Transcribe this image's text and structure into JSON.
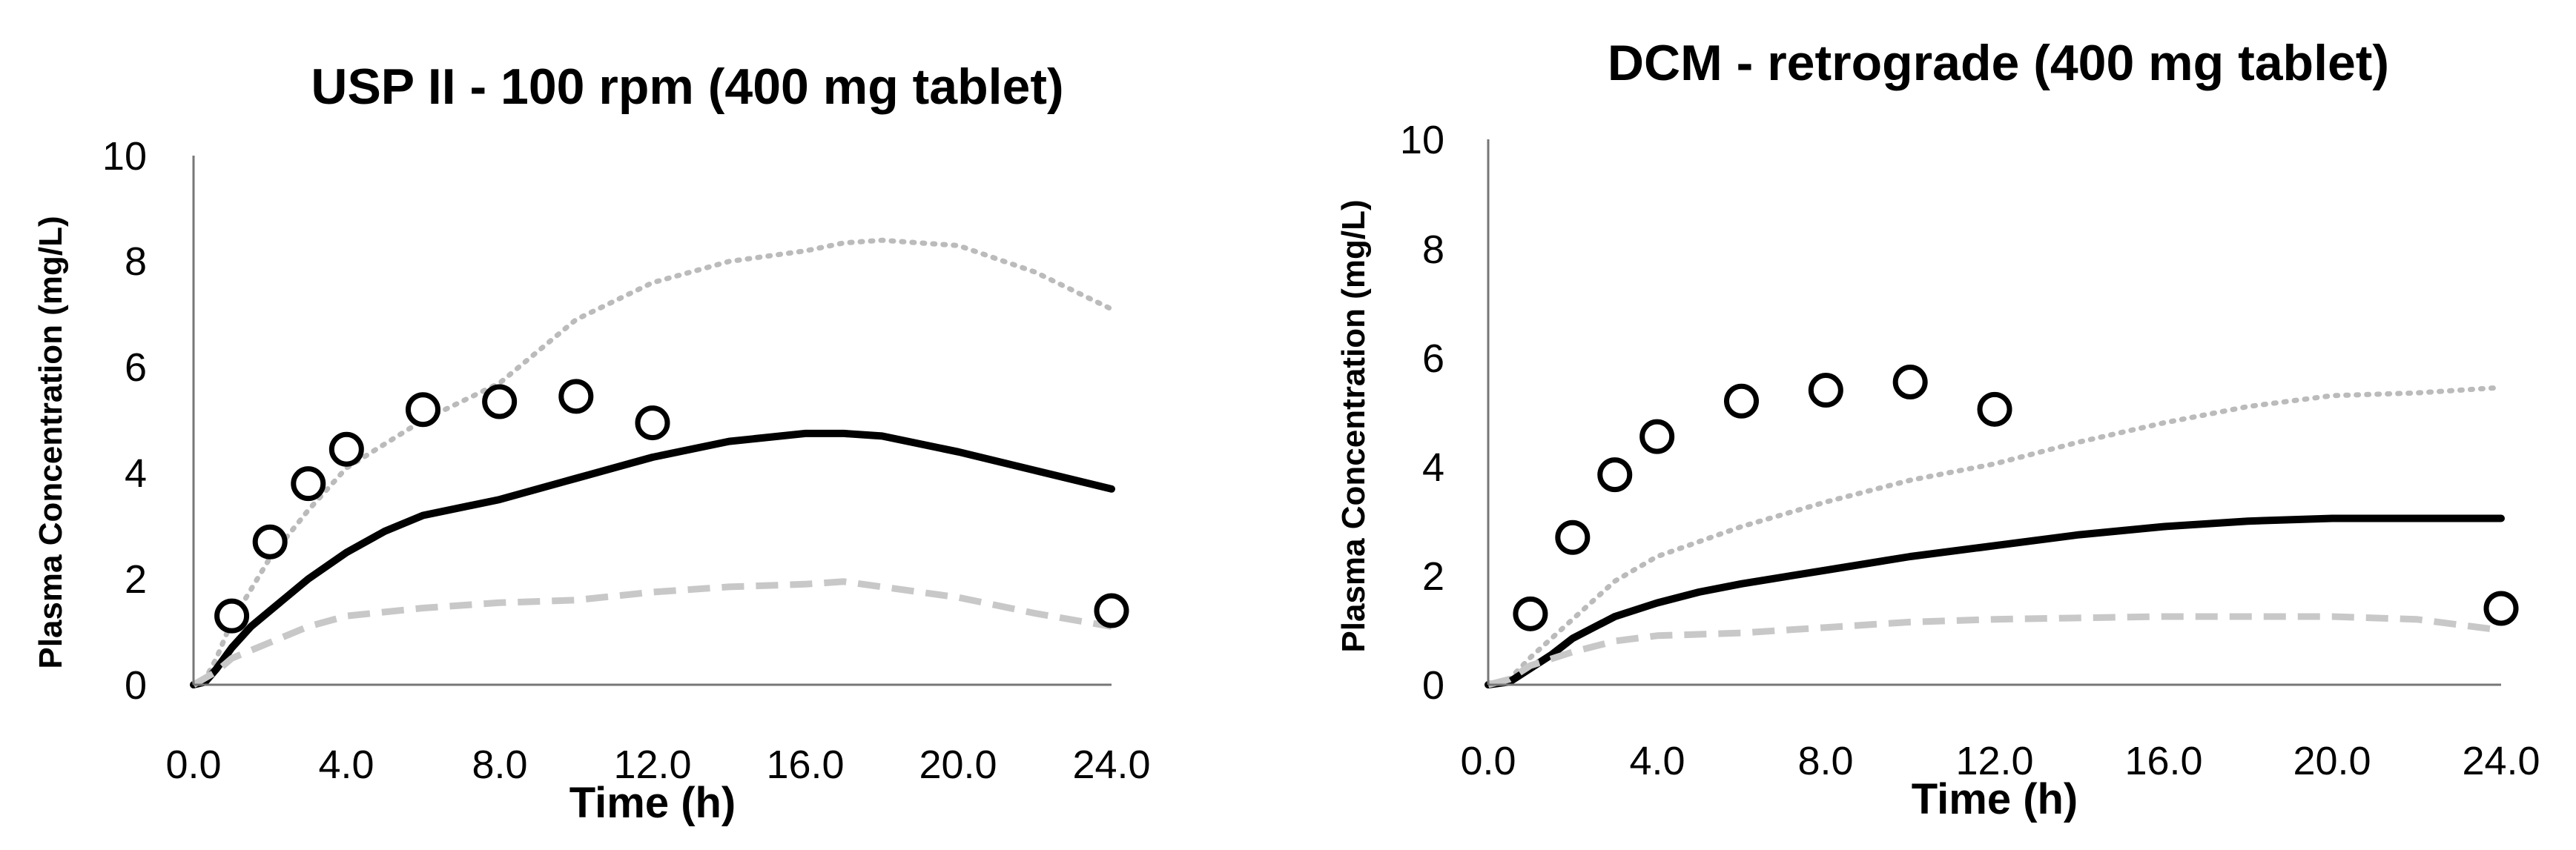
{
  "chart_data": [
    {
      "type": "line",
      "title": "USP II - 100 rpm (400 mg tablet)",
      "xlabel": "Time (h)",
      "ylabel": "Plasma Concentration (mg/L)",
      "xlim": [
        0,
        24
      ],
      "ylim": [
        0,
        10
      ],
      "x_ticks": [
        0,
        4,
        8,
        12,
        16,
        20,
        24
      ],
      "x_tick_labels": [
        "0.0",
        "4.0",
        "8.0",
        "12.0",
        "16.0",
        "20.0",
        "24.0"
      ],
      "y_ticks": [
        0,
        2,
        4,
        6,
        8,
        10
      ],
      "y_tick_labels": [
        "0",
        "2",
        "4",
        "6",
        "8",
        "10"
      ],
      "grid": false,
      "series": [
        {
          "name": "upper",
          "style": "dotted",
          "color": "#bbbbbb",
          "x": [
            0,
            0.3,
            0.6,
            1,
            1.5,
            2,
            3,
            4,
            6,
            8,
            10,
            12,
            14,
            16,
            17,
            18,
            20,
            22,
            24
          ],
          "y": [
            0,
            0.1,
            0.5,
            1.2,
            1.8,
            2.4,
            3.3,
            4.1,
            5.0,
            5.7,
            6.9,
            7.6,
            8.0,
            8.2,
            8.35,
            8.4,
            8.3,
            7.8,
            7.1
          ]
        },
        {
          "name": "median",
          "style": "solid",
          "color": "#000000",
          "x": [
            0,
            0.3,
            0.6,
            1,
            1.5,
            2,
            3,
            4,
            5,
            6,
            8,
            10,
            12,
            14,
            16,
            17,
            18,
            20,
            22,
            24
          ],
          "y": [
            0,
            0.05,
            0.3,
            0.7,
            1.1,
            1.4,
            2.0,
            2.5,
            2.9,
            3.2,
            3.5,
            3.9,
            4.3,
            4.6,
            4.75,
            4.75,
            4.7,
            4.4,
            4.05,
            3.7
          ]
        },
        {
          "name": "lower",
          "style": "dashed",
          "color": "#c8c8c8",
          "x": [
            0,
            0.6,
            1,
            2,
            3,
            4,
            6,
            8,
            10,
            12,
            14,
            16,
            17,
            18,
            20,
            22,
            24
          ],
          "y": [
            0,
            0.25,
            0.5,
            0.8,
            1.1,
            1.3,
            1.45,
            1.55,
            1.6,
            1.75,
            1.85,
            1.9,
            1.95,
            1.85,
            1.65,
            1.35,
            1.1
          ]
        },
        {
          "name": "observed",
          "style": "markers",
          "color": "#000000",
          "x": [
            1,
            2,
            3,
            4,
            6,
            8,
            10,
            12,
            24
          ],
          "y": [
            1.3,
            2.7,
            3.8,
            4.45,
            5.2,
            5.35,
            5.45,
            4.95,
            1.4
          ]
        }
      ]
    },
    {
      "type": "line",
      "title": "DCM - retrograde (400 mg tablet)",
      "xlabel": "Time (h)",
      "ylabel": "Plasma Concentration (mg/L)",
      "xlim": [
        0,
        24
      ],
      "ylim": [
        0,
        10
      ],
      "x_ticks": [
        0,
        4,
        8,
        12,
        16,
        20,
        24
      ],
      "x_tick_labels": [
        "0.0",
        "4.0",
        "8.0",
        "12.0",
        "16.0",
        "20.0",
        "24.0"
      ],
      "y_ticks": [
        0,
        2,
        4,
        6,
        8,
        10
      ],
      "y_tick_labels": [
        "0",
        "2",
        "4",
        "6",
        "8",
        "10"
      ],
      "grid": false,
      "series": [
        {
          "name": "upper",
          "style": "dotted",
          "color": "#bbbbbb",
          "x": [
            0,
            0.5,
            1,
            2,
            3,
            4,
            6,
            8,
            10,
            12,
            14,
            16,
            18,
            20,
            22,
            24
          ],
          "y": [
            0,
            0.1,
            0.5,
            1.2,
            1.9,
            2.35,
            2.9,
            3.35,
            3.75,
            4.05,
            4.45,
            4.8,
            5.1,
            5.3,
            5.35,
            5.45
          ]
        },
        {
          "name": "median",
          "style": "solid",
          "color": "#000000",
          "x": [
            0,
            0.5,
            1,
            1.5,
            2,
            3,
            4,
            5,
            6,
            8,
            10,
            12,
            14,
            16,
            18,
            20,
            22,
            24
          ],
          "y": [
            0,
            0.05,
            0.3,
            0.55,
            0.85,
            1.25,
            1.5,
            1.7,
            1.85,
            2.1,
            2.35,
            2.55,
            2.75,
            2.9,
            3.0,
            3.05,
            3.05,
            3.05
          ]
        },
        {
          "name": "lower",
          "style": "dashed",
          "color": "#c8c8c8",
          "x": [
            0,
            0.5,
            1,
            2,
            3,
            4,
            6,
            8,
            10,
            12,
            16,
            20,
            22,
            24
          ],
          "y": [
            0,
            0.1,
            0.35,
            0.6,
            0.8,
            0.9,
            0.95,
            1.05,
            1.15,
            1.2,
            1.25,
            1.25,
            1.2,
            1.0
          ]
        },
        {
          "name": "observed",
          "style": "markers",
          "color": "#000000",
          "x": [
            1,
            2,
            3,
            4,
            6,
            8,
            10,
            12,
            24
          ],
          "y": [
            1.3,
            2.7,
            3.85,
            4.55,
            5.2,
            5.4,
            5.55,
            5.05,
            1.4
          ]
        }
      ]
    }
  ]
}
